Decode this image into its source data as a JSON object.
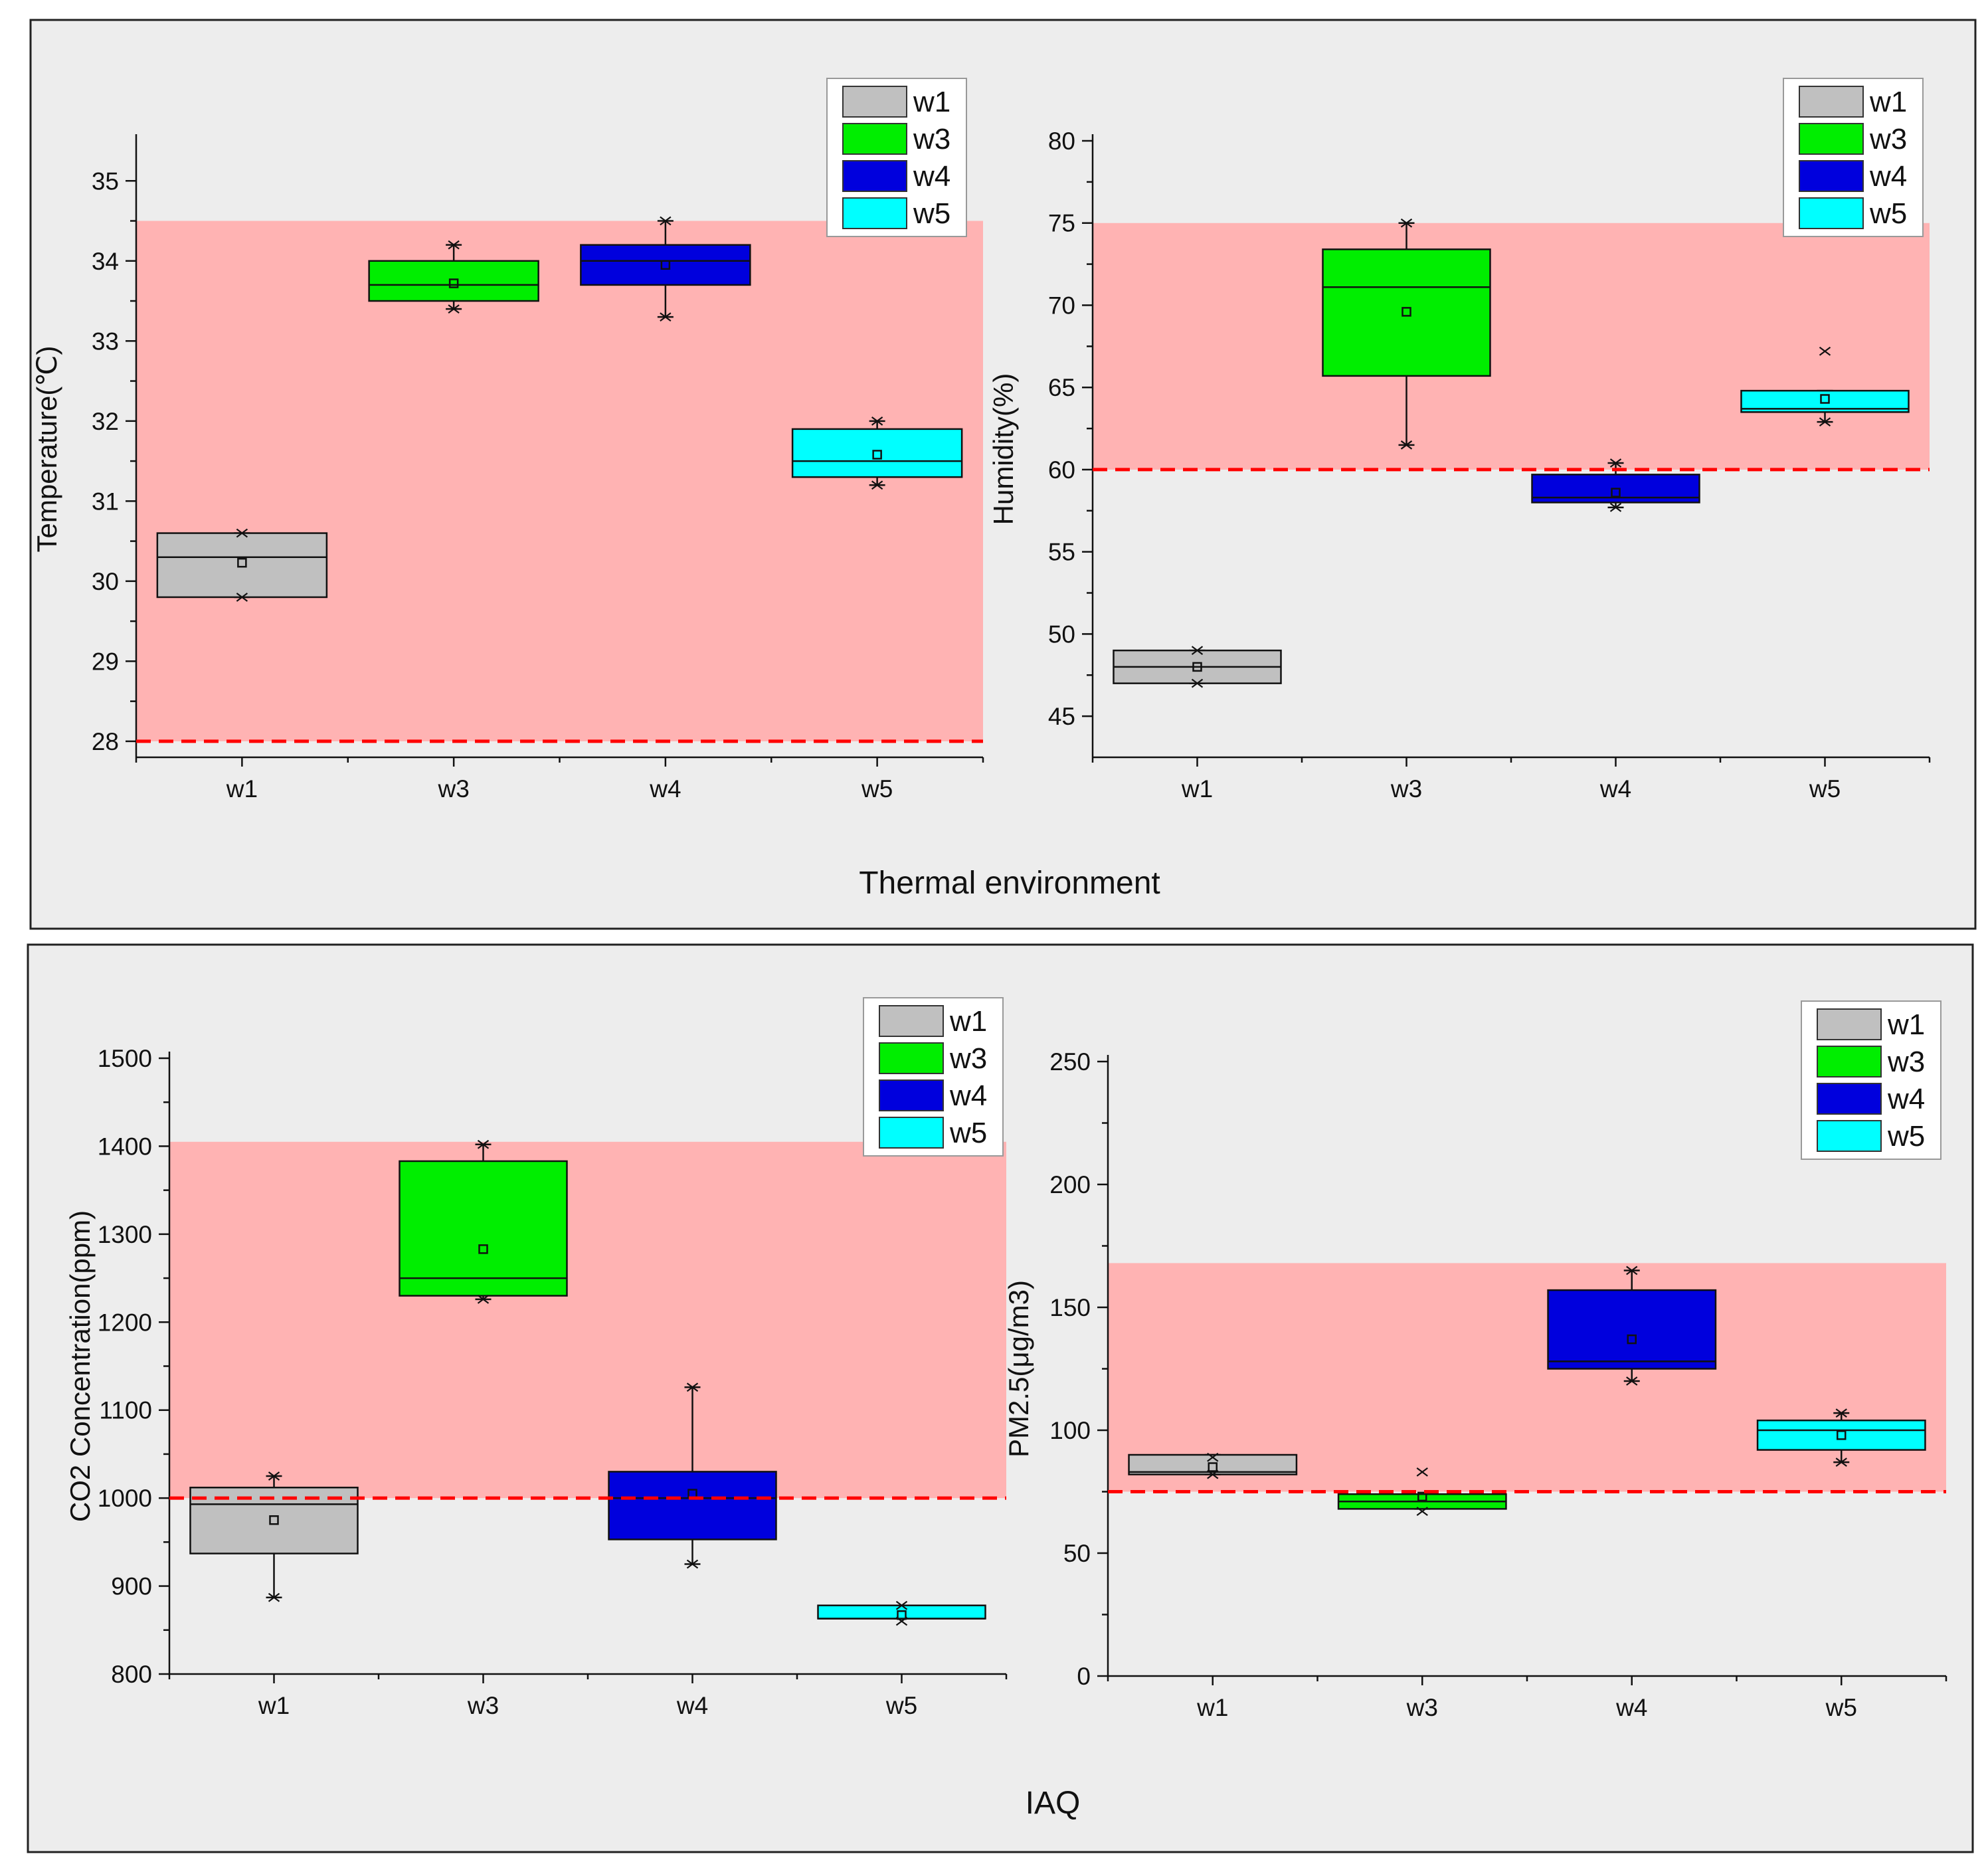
{
  "chart_data": [
    {
      "type": "box",
      "group": "Thermal environment",
      "ylabel": "Temperature(℃)",
      "xlabel": "",
      "categories": [
        "w1",
        "w3",
        "w4",
        "w5"
      ],
      "ylim": [
        27.8,
        35.5
      ],
      "yticks": [
        28,
        29,
        30,
        31,
        32,
        33,
        34,
        35
      ],
      "shaded_band": [
        28,
        34.5
      ],
      "threshold": 28,
      "legend_position": "top-right",
      "series": [
        {
          "name": "w1",
          "color": "#c0c0c0",
          "min": 29.8,
          "q1": 29.8,
          "median": 30.3,
          "q3": 30.6,
          "max": 30.6,
          "mean": 30.23,
          "outliers": [
            30.6,
            29.8
          ]
        },
        {
          "name": "w3",
          "color": "#00ee00",
          "min": 33.4,
          "q1": 33.5,
          "median": 33.7,
          "q3": 34.0,
          "max": 34.2,
          "mean": 33.72,
          "outliers": [
            34.2,
            33.4
          ]
        },
        {
          "name": "w4",
          "color": "#0000dd",
          "min": 33.3,
          "q1": 33.7,
          "median": 34.0,
          "q3": 34.2,
          "max": 34.5,
          "mean": 33.95,
          "outliers": [
            34.5,
            33.3
          ]
        },
        {
          "name": "w5",
          "color": "#00ffff",
          "min": 31.2,
          "q1": 31.3,
          "median": 31.5,
          "q3": 31.9,
          "max": 32.0,
          "mean": 31.58,
          "outliers": [
            32.0,
            31.2
          ]
        }
      ]
    },
    {
      "type": "box",
      "group": "Thermal environment",
      "ylabel": "Humidity(%)",
      "xlabel": "",
      "categories": [
        "w1",
        "w3",
        "w4",
        "w5"
      ],
      "ylim": [
        42.5,
        80
      ],
      "yticks": [
        45,
        50,
        55,
        60,
        65,
        70,
        75,
        80
      ],
      "shaded_band": [
        60,
        75
      ],
      "threshold": 60,
      "legend_position": "top-right",
      "series": [
        {
          "name": "w1",
          "color": "#c0c0c0",
          "min": 47.0,
          "q1": 47.0,
          "median": 48.0,
          "q3": 49.0,
          "max": 49.0,
          "mean": 48.0,
          "outliers": [
            49.0,
            47.0
          ]
        },
        {
          "name": "w3",
          "color": "#00ee00",
          "min": 61.5,
          "q1": 65.7,
          "median": 71.1,
          "q3": 73.4,
          "max": 75.0,
          "mean": 69.6,
          "outliers": [
            75.0,
            61.5
          ]
        },
        {
          "name": "w4",
          "color": "#0000dd",
          "min": 57.7,
          "q1": 58.0,
          "median": 58.3,
          "q3": 59.7,
          "max": 60.4,
          "mean": 58.6,
          "outliers": [
            60.4,
            57.7
          ]
        },
        {
          "name": "w5",
          "color": "#00ffff",
          "min": 62.9,
          "q1": 63.5,
          "median": 63.7,
          "q3": 64.8,
          "max": 64.8,
          "mean": 64.3,
          "outliers": [
            67.2,
            62.9
          ]
        }
      ]
    },
    {
      "type": "box",
      "group": "IAQ",
      "ylabel": "CO2 Concentration(ppm)",
      "xlabel": "",
      "categories": [
        "w1",
        "w3",
        "w4",
        "w5"
      ],
      "ylim": [
        800,
        1500
      ],
      "yticks": [
        800,
        900,
        1000,
        1100,
        1200,
        1300,
        1400,
        1500
      ],
      "shaded_band": [
        1000,
        1405
      ],
      "threshold": 1000,
      "legend_position": "top-right",
      "series": [
        {
          "name": "w1",
          "color": "#c0c0c0",
          "min": 887,
          "q1": 937,
          "median": 993,
          "q3": 1012,
          "max": 1025,
          "mean": 975,
          "outliers": [
            1025,
            887
          ]
        },
        {
          "name": "w3",
          "color": "#00ee00",
          "min": 1226,
          "q1": 1230,
          "median": 1250,
          "q3": 1383,
          "max": 1402,
          "mean": 1283,
          "outliers": [
            1402,
            1226
          ]
        },
        {
          "name": "w4",
          "color": "#0000dd",
          "min": 925,
          "q1": 953,
          "median": 1000,
          "q3": 1030,
          "max": 1126,
          "mean": 1005,
          "outliers": [
            1126,
            925
          ]
        },
        {
          "name": "w5",
          "color": "#00ffff",
          "min": 863,
          "q1": 863,
          "median": 863,
          "q3": 878,
          "max": 878,
          "mean": 867,
          "outliers": [
            878,
            860
          ]
        }
      ]
    },
    {
      "type": "box",
      "group": "IAQ",
      "ylabel": "PM2.5(μg/m3)",
      "xlabel": "",
      "categories": [
        "w1",
        "w3",
        "w4",
        "w5"
      ],
      "ylim": [
        0,
        250
      ],
      "yticks": [
        0,
        50,
        100,
        150,
        200,
        250
      ],
      "shaded_band": [
        75,
        168
      ],
      "threshold": 75,
      "legend_position": "top-right",
      "series": [
        {
          "name": "w1",
          "color": "#c0c0c0",
          "min": 82,
          "q1": 82,
          "median": 83,
          "q3": 90,
          "max": 90,
          "mean": 85,
          "outliers": [
            89,
            82
          ]
        },
        {
          "name": "w3",
          "color": "#00ee00",
          "min": 68,
          "q1": 68,
          "median": 71,
          "q3": 74,
          "max": 74,
          "mean": 73,
          "outliers": [
            83,
            67
          ]
        },
        {
          "name": "w4",
          "color": "#0000dd",
          "min": 120,
          "q1": 125,
          "median": 128,
          "q3": 157,
          "max": 165,
          "mean": 137,
          "outliers": [
            165,
            120
          ]
        },
        {
          "name": "w5",
          "color": "#00ffff",
          "min": 87,
          "q1": 92,
          "median": 100,
          "q3": 104,
          "max": 107,
          "mean": 98,
          "outliers": [
            107,
            87
          ]
        }
      ]
    }
  ],
  "groups": {
    "thermal_title": "Thermal environment",
    "iaq_title": "IAQ"
  },
  "colors": {
    "band": "#ffb3b3",
    "threshold": "#ff0000",
    "panel_bg": "#ededed"
  }
}
